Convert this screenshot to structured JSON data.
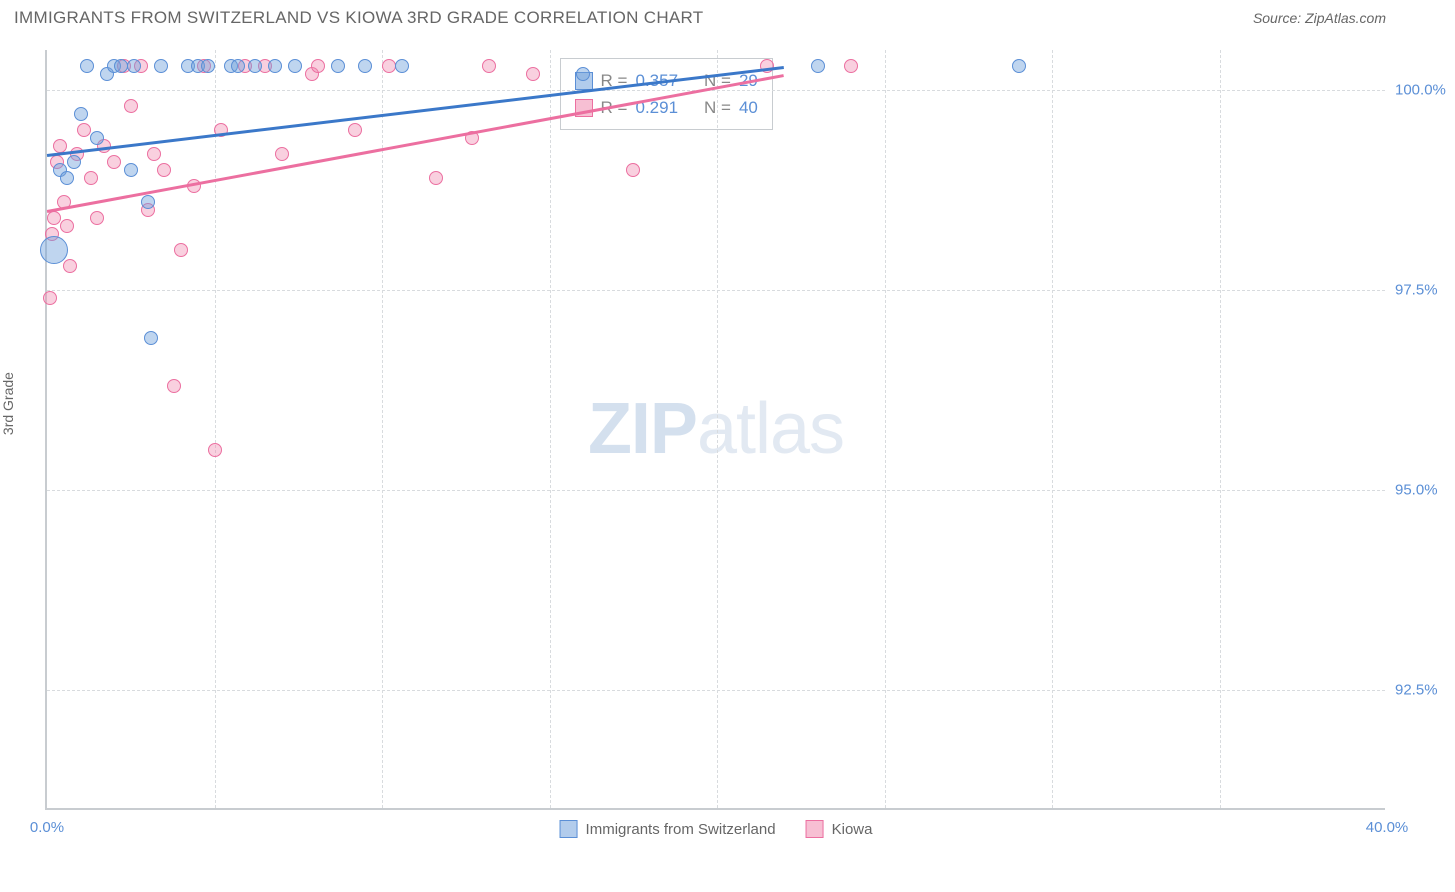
{
  "header": {
    "title": "IMMIGRANTS FROM SWITZERLAND VS KIOWA 3RD GRADE CORRELATION CHART",
    "source_label": "Source: ZipAtlas.com"
  },
  "axes": {
    "y_title": "3rd Grade",
    "x_min": 0,
    "x_max": 40,
    "y_min": 91,
    "y_max": 100.5,
    "y_ticks": [
      92.5,
      95.0,
      97.5,
      100.0
    ],
    "y_tick_labels": [
      "92.5%",
      "95.0%",
      "97.5%",
      "100.0%"
    ],
    "x_ticks": [
      0,
      5,
      10,
      15,
      20,
      25,
      30,
      35,
      40
    ],
    "x_labels_shown": {
      "0": "0.0%",
      "40": "40.0%"
    }
  },
  "series": {
    "switzerland": {
      "label": "Immigrants from Switzerland",
      "color": "#5b8fd6",
      "fill": "rgba(114,162,220,0.45)",
      "R": "0.357",
      "N": "29",
      "trend": {
        "x1": 0,
        "y1": 99.2,
        "x2": 22,
        "y2": 100.3
      },
      "points": [
        {
          "x": 0.2,
          "y": 98.0,
          "r": 14
        },
        {
          "x": 0.4,
          "y": 99.0,
          "r": 7
        },
        {
          "x": 0.6,
          "y": 98.9,
          "r": 7
        },
        {
          "x": 0.8,
          "y": 99.1,
          "r": 7
        },
        {
          "x": 1.0,
          "y": 99.7,
          "r": 7
        },
        {
          "x": 1.2,
          "y": 100.3,
          "r": 7
        },
        {
          "x": 1.5,
          "y": 99.4,
          "r": 7
        },
        {
          "x": 1.8,
          "y": 100.2,
          "r": 7
        },
        {
          "x": 2.0,
          "y": 100.3,
          "r": 7
        },
        {
          "x": 2.2,
          "y": 100.3,
          "r": 7
        },
        {
          "x": 2.5,
          "y": 99.0,
          "r": 7
        },
        {
          "x": 2.6,
          "y": 100.3,
          "r": 7
        },
        {
          "x": 3.0,
          "y": 98.6,
          "r": 7
        },
        {
          "x": 3.1,
          "y": 96.9,
          "r": 7
        },
        {
          "x": 3.4,
          "y": 100.3,
          "r": 7
        },
        {
          "x": 4.2,
          "y": 100.3,
          "r": 7
        },
        {
          "x": 4.5,
          "y": 100.3,
          "r": 7
        },
        {
          "x": 4.8,
          "y": 100.3,
          "r": 7
        },
        {
          "x": 5.5,
          "y": 100.3,
          "r": 7
        },
        {
          "x": 5.7,
          "y": 100.3,
          "r": 7
        },
        {
          "x": 6.2,
          "y": 100.3,
          "r": 7
        },
        {
          "x": 6.8,
          "y": 100.3,
          "r": 7
        },
        {
          "x": 7.4,
          "y": 100.3,
          "r": 7
        },
        {
          "x": 8.7,
          "y": 100.3,
          "r": 7
        },
        {
          "x": 9.5,
          "y": 100.3,
          "r": 7
        },
        {
          "x": 10.6,
          "y": 100.3,
          "r": 7
        },
        {
          "x": 16.0,
          "y": 100.2,
          "r": 7
        },
        {
          "x": 23.0,
          "y": 100.3,
          "r": 7
        },
        {
          "x": 29.0,
          "y": 100.3,
          "r": 7
        }
      ]
    },
    "kiowa": {
      "label": "Kiowa",
      "color": "#ec6fa0",
      "fill": "rgba(240,138,175,0.4)",
      "R": "0.291",
      "N": "40",
      "trend": {
        "x1": 0,
        "y1": 98.5,
        "x2": 22,
        "y2": 100.2
      },
      "points": [
        {
          "x": 0.1,
          "y": 97.4,
          "r": 7
        },
        {
          "x": 0.15,
          "y": 98.2,
          "r": 7
        },
        {
          "x": 0.2,
          "y": 98.4,
          "r": 7
        },
        {
          "x": 0.3,
          "y": 99.1,
          "r": 7
        },
        {
          "x": 0.4,
          "y": 99.3,
          "r": 7
        },
        {
          "x": 0.5,
          "y": 98.6,
          "r": 7
        },
        {
          "x": 0.6,
          "y": 98.3,
          "r": 7
        },
        {
          "x": 0.7,
          "y": 97.8,
          "r": 7
        },
        {
          "x": 0.9,
          "y": 99.2,
          "r": 7
        },
        {
          "x": 1.1,
          "y": 99.5,
          "r": 7
        },
        {
          "x": 1.3,
          "y": 98.9,
          "r": 7
        },
        {
          "x": 1.5,
          "y": 98.4,
          "r": 7
        },
        {
          "x": 1.7,
          "y": 99.3,
          "r": 7
        },
        {
          "x": 2.0,
          "y": 99.1,
          "r": 7
        },
        {
          "x": 2.3,
          "y": 100.3,
          "r": 7
        },
        {
          "x": 2.5,
          "y": 99.8,
          "r": 7
        },
        {
          "x": 2.8,
          "y": 100.3,
          "r": 7
        },
        {
          "x": 3.0,
          "y": 98.5,
          "r": 7
        },
        {
          "x": 3.2,
          "y": 99.2,
          "r": 7
        },
        {
          "x": 3.5,
          "y": 99.0,
          "r": 7
        },
        {
          "x": 3.8,
          "y": 96.3,
          "r": 7
        },
        {
          "x": 4.0,
          "y": 98.0,
          "r": 7
        },
        {
          "x": 4.4,
          "y": 98.8,
          "r": 7
        },
        {
          "x": 4.7,
          "y": 100.3,
          "r": 7
        },
        {
          "x": 5.0,
          "y": 95.5,
          "r": 7
        },
        {
          "x": 5.2,
          "y": 99.5,
          "r": 7
        },
        {
          "x": 5.9,
          "y": 100.3,
          "r": 7
        },
        {
          "x": 6.5,
          "y": 100.3,
          "r": 7
        },
        {
          "x": 7.0,
          "y": 99.2,
          "r": 7
        },
        {
          "x": 7.9,
          "y": 100.2,
          "r": 7
        },
        {
          "x": 8.1,
          "y": 100.3,
          "r": 7
        },
        {
          "x": 9.2,
          "y": 99.5,
          "r": 7
        },
        {
          "x": 10.2,
          "y": 100.3,
          "r": 7
        },
        {
          "x": 11.6,
          "y": 98.9,
          "r": 7
        },
        {
          "x": 12.7,
          "y": 99.4,
          "r": 7
        },
        {
          "x": 13.2,
          "y": 100.3,
          "r": 7
        },
        {
          "x": 14.5,
          "y": 100.2,
          "r": 7
        },
        {
          "x": 17.5,
          "y": 99.0,
          "r": 7
        },
        {
          "x": 21.5,
          "y": 100.3,
          "r": 7
        },
        {
          "x": 24.0,
          "y": 100.3,
          "r": 7
        }
      ]
    }
  },
  "watermark": {
    "bold": "ZIP",
    "light": "atlas"
  },
  "legend_labels": {
    "R": "R =",
    "N": "N ="
  }
}
